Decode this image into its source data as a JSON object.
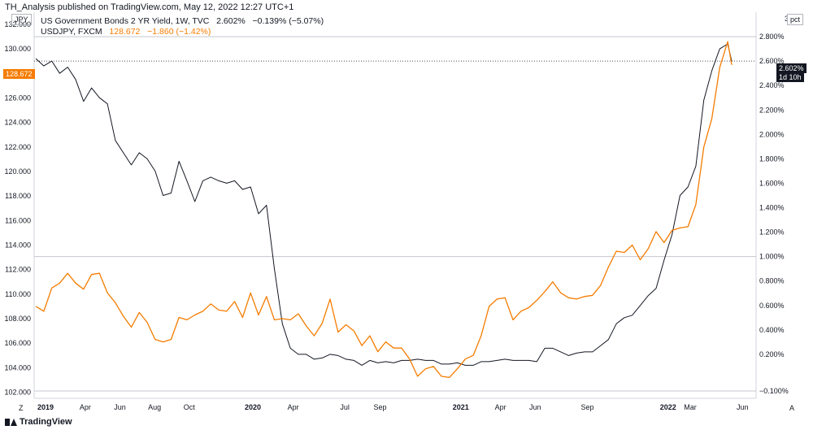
{
  "header": {
    "publisher": "TH_Analysis published on TradingView.com, May 12, 2022 12:27 UTC+1"
  },
  "legend": {
    "series1": {
      "name": "US Government Bonds 2 YR Yield, 1W, TVC",
      "price": "2.602%",
      "change": "−0.139% (−5.07%)"
    },
    "series2": {
      "name": "USDJPY, FXCM",
      "price": "128.672",
      "change": "−1.860 (−1.42%)"
    }
  },
  "badges": {
    "left_unit": "JPY",
    "right_unit": "pct",
    "right_top_value": "3.0",
    "usdjpy_price": "128.672",
    "yield_price": "2.602%",
    "yield_countdown": "1d 10h",
    "left_axis_button": "Z",
    "right_axis_button": "A"
  },
  "brand": {
    "name": "TradingView"
  },
  "colors": {
    "yield_line": "#131722",
    "usdjpy_line": "#f57c00",
    "grid": "#e0e3eb"
  },
  "chart_data": {
    "type": "line",
    "x_axis": {
      "ticks": [
        "2019",
        "Apr",
        "Jun",
        "Aug",
        "Oct",
        "2020",
        "Apr",
        "Jul",
        "Sep",
        "2021",
        "Apr",
        "Jun",
        "Sep",
        "2022",
        "Mar",
        "Jun"
      ],
      "tick_dates": [
        "2019-01-01",
        "2019-04-01",
        "2019-06-01",
        "2019-08-01",
        "2019-10-01",
        "2020-01-01",
        "2020-04-01",
        "2020-07-01",
        "2020-09-01",
        "2021-01-01",
        "2021-04-01",
        "2021-06-01",
        "2021-09-01",
        "2022-01-01",
        "2022-03-01",
        "2022-06-01"
      ],
      "bold_ticks": [
        "2019",
        "2020",
        "2021",
        "2022"
      ],
      "range": [
        "2019-01-01",
        "2022-06-25"
      ]
    },
    "left_axis": {
      "unit": "JPY",
      "range": [
        101.5,
        133.0
      ],
      "ticks": [
        "102.000",
        "104.000",
        "106.000",
        "108.000",
        "110.000",
        "112.000",
        "114.000",
        "116.000",
        "118.000",
        "120.000",
        "122.000",
        "124.000",
        "126.000",
        "128.000",
        "130.000",
        "132.000"
      ]
    },
    "right_axis": {
      "unit": "pct",
      "range": [
        -0.16,
        3.0
      ],
      "ticks": [
        "−0.100%",
        "0.200%",
        "0.400%",
        "0.600%",
        "0.800%",
        "1.000%",
        "1.200%",
        "1.400%",
        "1.600%",
        "1.800%",
        "2.000%",
        "2.200%",
        "2.400%",
        "2.600%",
        "2.800%"
      ]
    },
    "series": [
      {
        "name": "US Government Bonds 2 YR Yield, 1W, TVC",
        "axis": "right",
        "color": "#131722",
        "points": [
          [
            "2019-01-04",
            2.62
          ],
          [
            "2019-01-18",
            2.56
          ],
          [
            "2019-02-01",
            2.6
          ],
          [
            "2019-02-15",
            2.5
          ],
          [
            "2019-03-01",
            2.55
          ],
          [
            "2019-03-15",
            2.45
          ],
          [
            "2019-03-29",
            2.27
          ],
          [
            "2019-04-12",
            2.38
          ],
          [
            "2019-04-26",
            2.3
          ],
          [
            "2019-05-10",
            2.25
          ],
          [
            "2019-05-24",
            1.95
          ],
          [
            "2019-06-07",
            1.85
          ],
          [
            "2019-06-21",
            1.75
          ],
          [
            "2019-07-05",
            1.85
          ],
          [
            "2019-07-19",
            1.8
          ],
          [
            "2019-08-02",
            1.7
          ],
          [
            "2019-08-16",
            1.5
          ],
          [
            "2019-08-30",
            1.52
          ],
          [
            "2019-09-13",
            1.78
          ],
          [
            "2019-09-27",
            1.62
          ],
          [
            "2019-10-11",
            1.45
          ],
          [
            "2019-10-25",
            1.62
          ],
          [
            "2019-11-08",
            1.65
          ],
          [
            "2019-11-22",
            1.62
          ],
          [
            "2019-12-06",
            1.6
          ],
          [
            "2019-12-20",
            1.62
          ],
          [
            "2020-01-03",
            1.55
          ],
          [
            "2020-01-17",
            1.57
          ],
          [
            "2020-01-31",
            1.35
          ],
          [
            "2020-02-14",
            1.42
          ],
          [
            "2020-02-28",
            0.9
          ],
          [
            "2020-03-13",
            0.45
          ],
          [
            "2020-03-27",
            0.25
          ],
          [
            "2020-04-10",
            0.2
          ],
          [
            "2020-04-24",
            0.2
          ],
          [
            "2020-05-08",
            0.16
          ],
          [
            "2020-05-22",
            0.17
          ],
          [
            "2020-06-05",
            0.2
          ],
          [
            "2020-06-19",
            0.19
          ],
          [
            "2020-07-03",
            0.16
          ],
          [
            "2020-07-17",
            0.15
          ],
          [
            "2020-07-31",
            0.11
          ],
          [
            "2020-08-14",
            0.15
          ],
          [
            "2020-08-28",
            0.13
          ],
          [
            "2020-09-11",
            0.14
          ],
          [
            "2020-09-25",
            0.13
          ],
          [
            "2020-10-09",
            0.15
          ],
          [
            "2020-10-23",
            0.15
          ],
          [
            "2020-11-06",
            0.16
          ],
          [
            "2020-11-20",
            0.15
          ],
          [
            "2020-12-04",
            0.15
          ],
          [
            "2020-12-18",
            0.12
          ],
          [
            "2021-01-01",
            0.12
          ],
          [
            "2021-01-15",
            0.13
          ],
          [
            "2021-01-29",
            0.11
          ],
          [
            "2021-02-12",
            0.11
          ],
          [
            "2021-02-26",
            0.14
          ],
          [
            "2021-03-12",
            0.14
          ],
          [
            "2021-03-26",
            0.15
          ],
          [
            "2021-04-09",
            0.16
          ],
          [
            "2021-04-23",
            0.15
          ],
          [
            "2021-05-07",
            0.15
          ],
          [
            "2021-05-21",
            0.15
          ],
          [
            "2021-06-04",
            0.14
          ],
          [
            "2021-06-18",
            0.25
          ],
          [
            "2021-07-02",
            0.25
          ],
          [
            "2021-07-16",
            0.22
          ],
          [
            "2021-07-30",
            0.19
          ],
          [
            "2021-08-13",
            0.21
          ],
          [
            "2021-08-27",
            0.22
          ],
          [
            "2021-09-10",
            0.22
          ],
          [
            "2021-09-24",
            0.27
          ],
          [
            "2021-10-08",
            0.32
          ],
          [
            "2021-10-22",
            0.45
          ],
          [
            "2021-11-05",
            0.5
          ],
          [
            "2021-11-19",
            0.52
          ],
          [
            "2021-12-03",
            0.6
          ],
          [
            "2021-12-17",
            0.68
          ],
          [
            "2021-12-31",
            0.74
          ],
          [
            "2022-01-14",
            0.97
          ],
          [
            "2022-01-28",
            1.18
          ],
          [
            "2022-02-11",
            1.5
          ],
          [
            "2022-02-25",
            1.57
          ],
          [
            "2022-03-11",
            1.74
          ],
          [
            "2022-03-25",
            2.28
          ],
          [
            "2022-04-08",
            2.52
          ],
          [
            "2022-04-22",
            2.7
          ],
          [
            "2022-05-06",
            2.74
          ],
          [
            "2022-05-13",
            2.6
          ]
        ]
      },
      {
        "name": "USDJPY, FXCM",
        "axis": "left",
        "color": "#f57c00",
        "points": [
          [
            "2019-01-04",
            109.0
          ],
          [
            "2019-01-18",
            108.6
          ],
          [
            "2019-02-01",
            110.5
          ],
          [
            "2019-02-15",
            110.9
          ],
          [
            "2019-03-01",
            111.7
          ],
          [
            "2019-03-15",
            110.9
          ],
          [
            "2019-03-29",
            110.4
          ],
          [
            "2019-04-12",
            111.6
          ],
          [
            "2019-04-26",
            111.7
          ],
          [
            "2019-05-10",
            110.1
          ],
          [
            "2019-05-24",
            109.3
          ],
          [
            "2019-06-07",
            108.2
          ],
          [
            "2019-06-21",
            107.3
          ],
          [
            "2019-07-05",
            108.5
          ],
          [
            "2019-07-19",
            107.7
          ],
          [
            "2019-08-02",
            106.3
          ],
          [
            "2019-08-16",
            106.1
          ],
          [
            "2019-08-30",
            106.3
          ],
          [
            "2019-09-13",
            108.1
          ],
          [
            "2019-09-27",
            107.9
          ],
          [
            "2019-10-11",
            108.3
          ],
          [
            "2019-10-25",
            108.6
          ],
          [
            "2019-11-08",
            109.2
          ],
          [
            "2019-11-22",
            108.7
          ],
          [
            "2019-12-06",
            108.6
          ],
          [
            "2019-12-20",
            109.4
          ],
          [
            "2020-01-03",
            108.1
          ],
          [
            "2020-01-17",
            110.1
          ],
          [
            "2020-01-31",
            108.3
          ],
          [
            "2020-02-14",
            109.8
          ],
          [
            "2020-02-28",
            107.9
          ],
          [
            "2020-03-13",
            108.0
          ],
          [
            "2020-03-27",
            107.9
          ],
          [
            "2020-04-10",
            108.4
          ],
          [
            "2020-04-24",
            107.4
          ],
          [
            "2020-05-08",
            106.6
          ],
          [
            "2020-05-22",
            107.6
          ],
          [
            "2020-06-05",
            109.6
          ],
          [
            "2020-06-19",
            106.9
          ],
          [
            "2020-07-03",
            107.5
          ],
          [
            "2020-07-17",
            107.0
          ],
          [
            "2020-07-31",
            105.8
          ],
          [
            "2020-08-14",
            106.6
          ],
          [
            "2020-08-28",
            105.3
          ],
          [
            "2020-09-11",
            106.1
          ],
          [
            "2020-09-25",
            105.6
          ],
          [
            "2020-10-09",
            105.6
          ],
          [
            "2020-10-23",
            104.7
          ],
          [
            "2020-11-06",
            103.3
          ],
          [
            "2020-11-20",
            103.9
          ],
          [
            "2020-12-04",
            104.1
          ],
          [
            "2020-12-18",
            103.3
          ],
          [
            "2021-01-01",
            103.2
          ],
          [
            "2021-01-15",
            103.9
          ],
          [
            "2021-01-29",
            104.7
          ],
          [
            "2021-02-12",
            105.0
          ],
          [
            "2021-02-26",
            106.6
          ],
          [
            "2021-03-12",
            109.0
          ],
          [
            "2021-03-26",
            109.6
          ],
          [
            "2021-04-09",
            109.7
          ],
          [
            "2021-04-23",
            107.9
          ],
          [
            "2021-05-07",
            108.6
          ],
          [
            "2021-05-21",
            108.9
          ],
          [
            "2021-06-04",
            109.5
          ],
          [
            "2021-06-18",
            110.2
          ],
          [
            "2021-07-02",
            111.0
          ],
          [
            "2021-07-16",
            110.1
          ],
          [
            "2021-07-30",
            109.7
          ],
          [
            "2021-08-13",
            109.6
          ],
          [
            "2021-08-27",
            109.8
          ],
          [
            "2021-09-10",
            109.9
          ],
          [
            "2021-09-24",
            110.7
          ],
          [
            "2021-10-08",
            112.2
          ],
          [
            "2021-10-22",
            113.5
          ],
          [
            "2021-11-05",
            113.4
          ],
          [
            "2021-11-19",
            114.0
          ],
          [
            "2021-12-03",
            112.8
          ],
          [
            "2021-12-17",
            113.7
          ],
          [
            "2021-12-31",
            115.1
          ],
          [
            "2022-01-14",
            114.2
          ],
          [
            "2022-01-28",
            115.2
          ],
          [
            "2022-02-11",
            115.4
          ],
          [
            "2022-02-25",
            115.5
          ],
          [
            "2022-03-11",
            117.3
          ],
          [
            "2022-03-25",
            122.0
          ],
          [
            "2022-04-08",
            124.3
          ],
          [
            "2022-04-22",
            128.5
          ],
          [
            "2022-05-06",
            130.6
          ],
          [
            "2022-05-13",
            128.7
          ]
        ]
      }
    ],
    "grid": false,
    "legend_position": "top-left"
  }
}
